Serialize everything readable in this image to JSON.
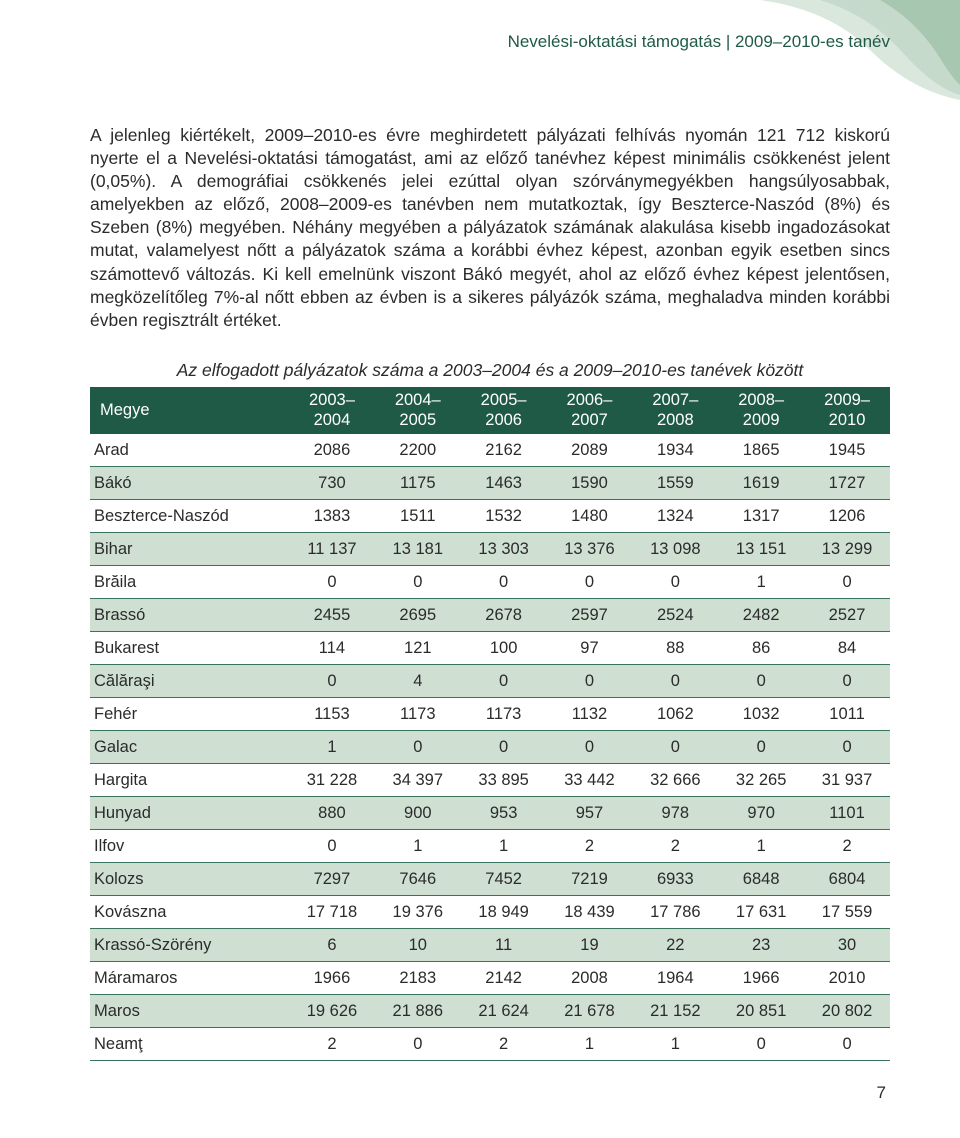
{
  "header": "Nevelési-oktatási támogatás | 2009–2010-es tanév",
  "paragraph": "A jelenleg kiértékelt, 2009–2010-es évre meghirdetett pályázati felhívás nyomán 121 712 kiskorú nyerte el a Nevelési-oktatási támogatást, ami az előző tanévhez képest minimális csökkenést jelent (0,05%). A demográfiai csökkenés jelei ezúttal olyan szórványmegyékben hangsúlyosabbak, amelyekben az előző, 2008–2009-es tanévben nem mutatkoztak, így Beszterce-Naszód (8%) és Szeben (8%) megyében. Néhány megyében a pályázatok számának alakulása kisebb ingadozásokat mutat, valamelyest nőtt a pályázatok száma a korábbi évhez képest, azonban egyik esetben sincs számottevő változás. Ki kell emelnünk viszont Bákó megyét, ahol az előző évhez képest jelentősen, megközelítőleg 7%-al nőtt ebben az évben is a sikeres pályázók száma, meghaladva minden korábbi évben regisztrált értéket.",
  "table": {
    "caption": "Az elfogadott pályázatok száma a 2003–2004 és a 2009–2010-es tanévek között",
    "col0": "Megye",
    "cols": [
      {
        "a": "2003–",
        "b": "2004"
      },
      {
        "a": "2004–",
        "b": "2005"
      },
      {
        "a": "2005–",
        "b": "2006"
      },
      {
        "a": "2006–",
        "b": "2007"
      },
      {
        "a": "2007–",
        "b": "2008"
      },
      {
        "a": "2008–",
        "b": "2009"
      },
      {
        "a": "2009–",
        "b": "2010"
      }
    ],
    "rows": [
      {
        "n": "Arad",
        "v": [
          "2086",
          "2200",
          "2162",
          "2089",
          "1934",
          "1865",
          "1945"
        ]
      },
      {
        "n": "Bákó",
        "v": [
          "730",
          "1175",
          "1463",
          "1590",
          "1559",
          "1619",
          "1727"
        ]
      },
      {
        "n": "Beszterce-Naszód",
        "v": [
          "1383",
          "1511",
          "1532",
          "1480",
          "1324",
          "1317",
          "1206"
        ]
      },
      {
        "n": "Bihar",
        "v": [
          "11 137",
          "13 181",
          "13 303",
          "13 376",
          "13 098",
          "13 151",
          "13 299"
        ]
      },
      {
        "n": "Brăila",
        "v": [
          "0",
          "0",
          "0",
          "0",
          "0",
          "1",
          "0"
        ]
      },
      {
        "n": "Brassó",
        "v": [
          "2455",
          "2695",
          "2678",
          "2597",
          "2524",
          "2482",
          "2527"
        ]
      },
      {
        "n": "Bukarest",
        "v": [
          "114",
          "121",
          "100",
          "97",
          "88",
          "86",
          "84"
        ]
      },
      {
        "n": "Călăraşi",
        "v": [
          "0",
          "4",
          "0",
          "0",
          "0",
          "0",
          "0"
        ]
      },
      {
        "n": "Fehér",
        "v": [
          "1153",
          "1173",
          "1173",
          "1132",
          "1062",
          "1032",
          "1011"
        ]
      },
      {
        "n": "Galac",
        "v": [
          "1",
          "0",
          "0",
          "0",
          "0",
          "0",
          "0"
        ]
      },
      {
        "n": "Hargita",
        "v": [
          "31 228",
          "34 397",
          "33 895",
          "33 442",
          "32 666",
          "32 265",
          "31 937"
        ]
      },
      {
        "n": "Hunyad",
        "v": [
          "880",
          "900",
          "953",
          "957",
          "978",
          "970",
          "1101"
        ]
      },
      {
        "n": "Ilfov",
        "v": [
          "0",
          "1",
          "1",
          "2",
          "2",
          "1",
          "2"
        ]
      },
      {
        "n": "Kolozs",
        "v": [
          "7297",
          "7646",
          "7452",
          "7219",
          "6933",
          "6848",
          "6804"
        ]
      },
      {
        "n": "Kovászna",
        "v": [
          "17 718",
          "19 376",
          "18 949",
          "18 439",
          "17 786",
          "17 631",
          "17 559"
        ]
      },
      {
        "n": "Krassó-Szörény",
        "v": [
          "6",
          "10",
          "11",
          "19",
          "22",
          "23",
          "30"
        ]
      },
      {
        "n": "Máramaros",
        "v": [
          "1966",
          "2183",
          "2142",
          "2008",
          "1964",
          "1966",
          "2010"
        ]
      },
      {
        "n": "Maros",
        "v": [
          "19 626",
          "21 886",
          "21 624",
          "21 678",
          "21 152",
          "20 851",
          "20 802"
        ]
      },
      {
        "n": "Neamţ",
        "v": [
          "2",
          "0",
          "2",
          "1",
          "1",
          "0",
          "0"
        ]
      }
    ]
  },
  "pageNumber": "7",
  "style": {
    "headerGreen": "#1f5a46",
    "altRow": "#cfe0d3",
    "decoLight": "#d9e7dc",
    "decoMid": "#c6dacb",
    "decoDark": "#a8c7b1"
  }
}
